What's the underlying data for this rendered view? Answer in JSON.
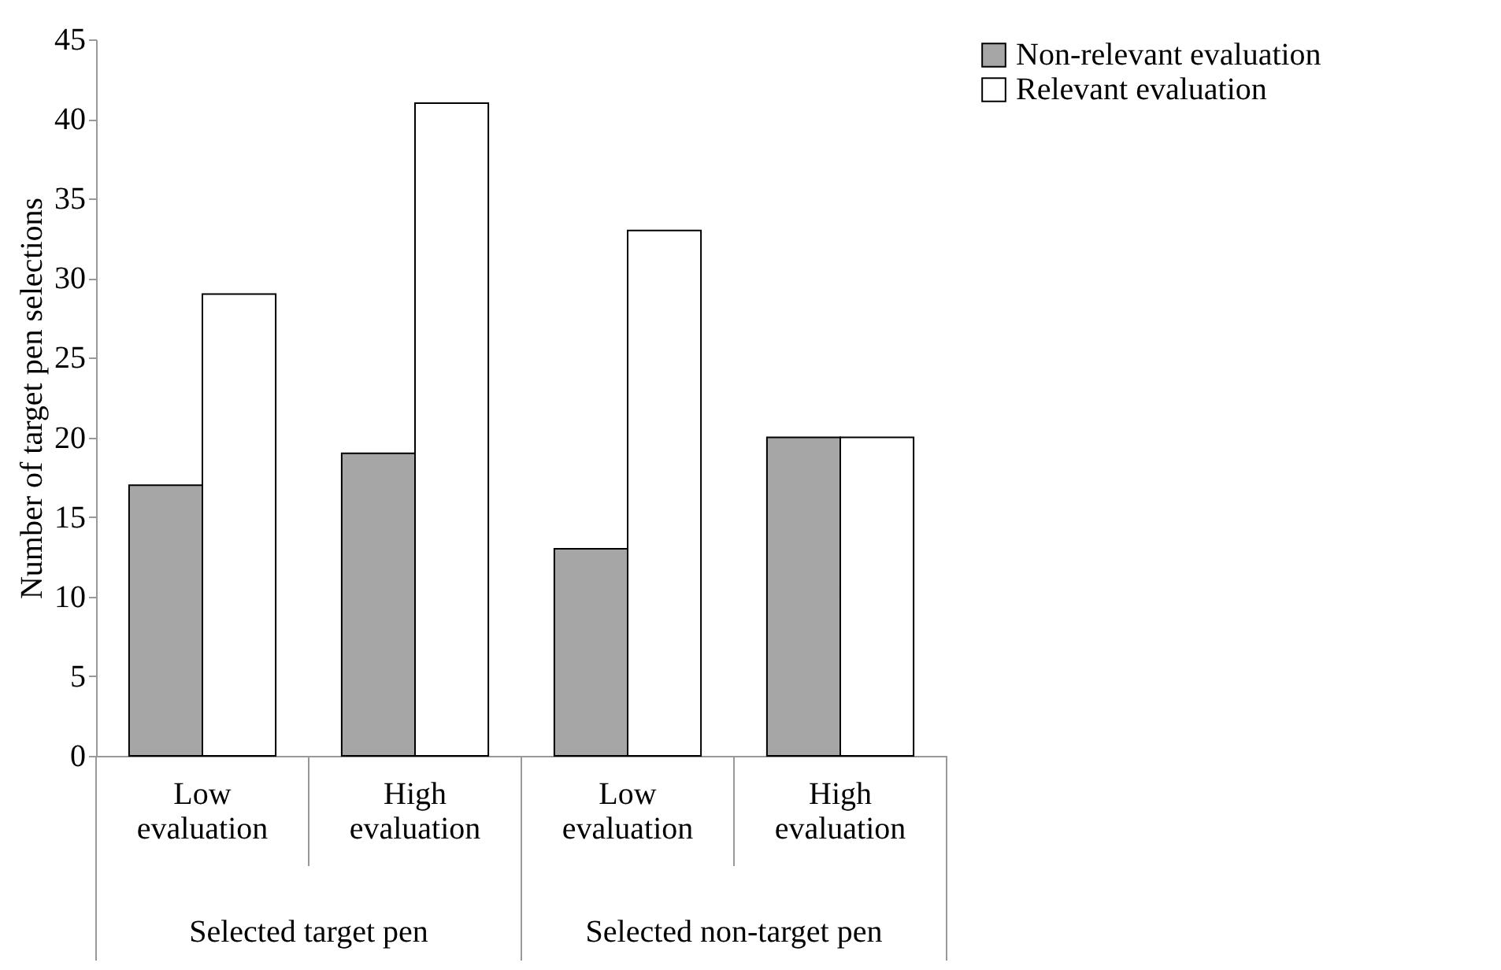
{
  "chart_data": {
    "type": "bar",
    "ylabel": "Number of target pen selections",
    "categories": [
      "Low evaluation",
      "High evaluation",
      "Low evaluation",
      "High evaluation"
    ],
    "series": [
      {
        "name": "Non-relevant evaluation",
        "color": "#a6a6a6",
        "values": [
          17,
          19,
          13,
          20
        ]
      },
      {
        "name": "Relevant evaluation",
        "color": "#ffffff",
        "values": [
          29,
          41,
          33,
          20
        ]
      }
    ],
    "ylim": [
      0,
      45
    ],
    "yticks": [
      0,
      5,
      10,
      15,
      20,
      25,
      30,
      35,
      40,
      45
    ],
    "grid": false,
    "legend": "right",
    "annotations": [
      "Selected target pen",
      "Selected non-target pen"
    ]
  }
}
